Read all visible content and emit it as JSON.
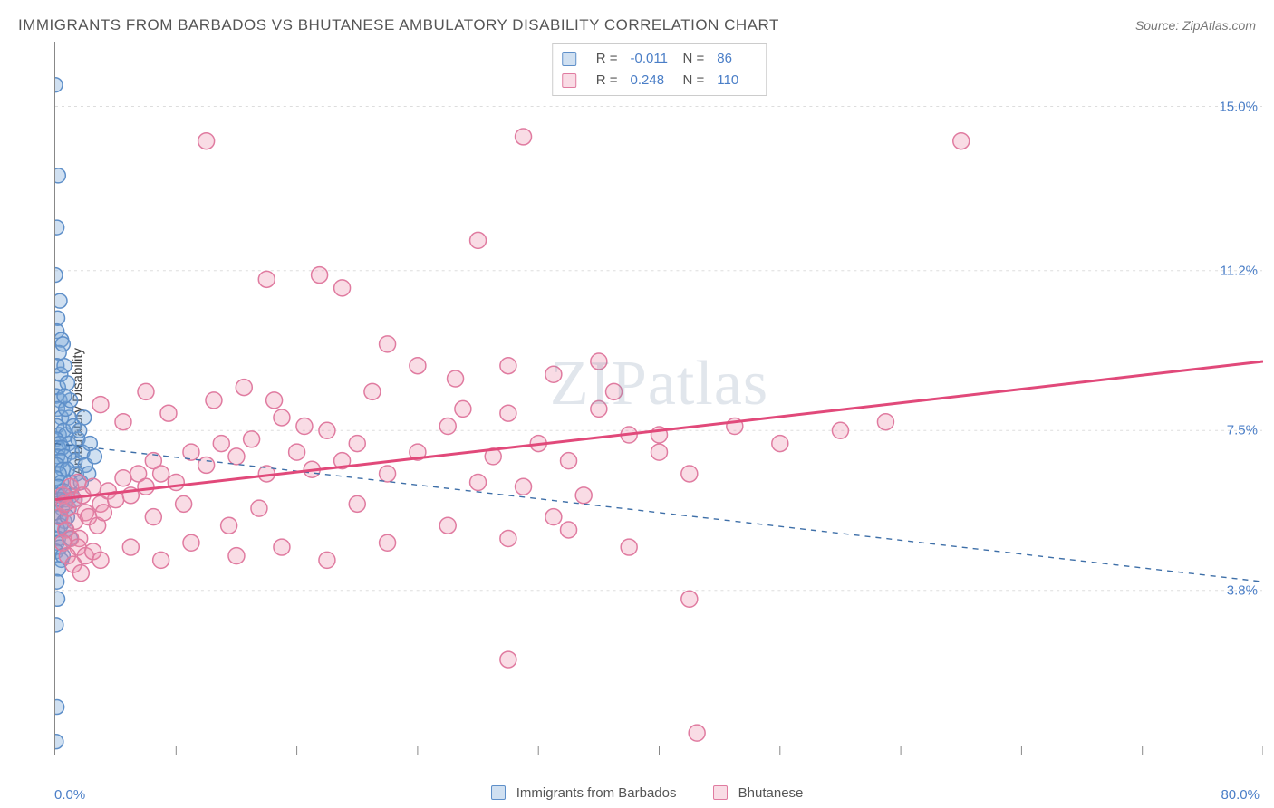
{
  "header": {
    "title": "IMMIGRANTS FROM BARBADOS VS BHUTANESE AMBULATORY DISABILITY CORRELATION CHART",
    "source_prefix": "Source: ",
    "source": "ZipAtlas.com"
  },
  "chart": {
    "type": "scatter",
    "background_color": "#ffffff",
    "grid_color": "#dddddd",
    "grid_dash": "3,4",
    "axis_color": "#888888",
    "tick_color": "#888888",
    "watermark_text": "ZIPatlas",
    "y_axis_label": "Ambulatory Disability",
    "x_axis": {
      "min_label": "0.0%",
      "max_label": "80.0%",
      "xmin": 0.0,
      "xmax": 80.0,
      "ticks_minor": [
        8,
        16,
        24,
        32,
        40,
        48,
        56,
        64,
        72,
        80
      ]
    },
    "y_axis": {
      "ymin": 0.0,
      "ymax": 16.5,
      "grid_values": [
        3.8,
        7.5,
        11.2,
        15.0
      ],
      "grid_labels": [
        "3.8%",
        "7.5%",
        "11.2%",
        "15.0%"
      ]
    },
    "label_color": "#4a7ec7",
    "legend_bottom": {
      "series1_label": "Immigrants from Barbados",
      "series2_label": "Bhutanese"
    },
    "stats_legend": {
      "r_label": "R =",
      "n_label": "N =",
      "rows": [
        {
          "r": "-0.011",
          "n": "86"
        },
        {
          "r": "0.248",
          "n": "110"
        }
      ]
    },
    "series1": {
      "name": "Immigrants from Barbados",
      "point_fill": "rgba(120,165,215,0.35)",
      "point_stroke": "#5e8fc9",
      "marker_radius": 8,
      "marker_stroke_width": 1.5,
      "trend_color": "#3e6fa8",
      "trend_width": 1.4,
      "trend_dash": "6,6",
      "trend_y_at_xmin": 7.2,
      "trend_y_at_xmax": 4.0,
      "points": [
        [
          0.0,
          15.5
        ],
        [
          0.2,
          13.4
        ],
        [
          0.1,
          12.2
        ],
        [
          0.0,
          11.1
        ],
        [
          0.3,
          10.5
        ],
        [
          0.15,
          10.1
        ],
        [
          0.1,
          9.8
        ],
        [
          0.4,
          9.6
        ],
        [
          0.25,
          9.3
        ],
        [
          0.1,
          9.0
        ],
        [
          0.35,
          8.8
        ],
        [
          0.2,
          8.5
        ],
        [
          0.05,
          8.3
        ],
        [
          0.3,
          8.2
        ],
        [
          0.15,
          8.0
        ],
        [
          0.4,
          7.8
        ],
        [
          0.1,
          7.6
        ],
        [
          0.55,
          7.5
        ],
        [
          0.25,
          7.4
        ],
        [
          0.7,
          7.4
        ],
        [
          0.05,
          7.3
        ],
        [
          0.3,
          7.2
        ],
        [
          0.9,
          7.2
        ],
        [
          0.2,
          7.1
        ],
        [
          1.1,
          7.0
        ],
        [
          0.45,
          7.1
        ],
        [
          0.15,
          6.9
        ],
        [
          0.6,
          6.9
        ],
        [
          0.35,
          6.8
        ],
        [
          1.3,
          6.8
        ],
        [
          0.1,
          6.7
        ],
        [
          0.5,
          6.6
        ],
        [
          0.8,
          6.6
        ],
        [
          0.25,
          6.5
        ],
        [
          0.05,
          6.4
        ],
        [
          0.4,
          6.3
        ],
        [
          1.0,
          6.3
        ],
        [
          0.2,
          6.2
        ],
        [
          0.55,
          6.1
        ],
        [
          0.15,
          6.0
        ],
        [
          0.3,
          5.9
        ],
        [
          0.7,
          5.9
        ],
        [
          0.1,
          5.8
        ],
        [
          0.45,
          5.7
        ],
        [
          0.05,
          5.6
        ],
        [
          0.25,
          5.5
        ],
        [
          0.6,
          5.4
        ],
        [
          0.35,
          5.3
        ],
        [
          0.15,
          5.2
        ],
        [
          0.2,
          5.0
        ],
        [
          0.1,
          4.9
        ],
        [
          0.3,
          4.8
        ],
        [
          0.05,
          4.7
        ],
        [
          0.4,
          4.5
        ],
        [
          0.2,
          4.3
        ],
        [
          0.1,
          4.0
        ],
        [
          0.15,
          3.6
        ],
        [
          0.05,
          3.0
        ],
        [
          0.1,
          1.1
        ],
        [
          0.05,
          0.3
        ],
        [
          1.5,
          7.3
        ],
        [
          1.8,
          7.0
        ],
        [
          2.0,
          6.7
        ],
        [
          2.3,
          7.2
        ],
        [
          2.6,
          6.9
        ],
        [
          0.9,
          7.8
        ],
        [
          1.2,
          7.6
        ],
        [
          0.7,
          8.0
        ],
        [
          0.8,
          8.6
        ],
        [
          0.6,
          9.0
        ],
        [
          1.0,
          8.2
        ],
        [
          0.5,
          9.5
        ],
        [
          1.4,
          6.5
        ],
        [
          1.7,
          6.3
        ],
        [
          1.1,
          6.0
        ],
        [
          0.9,
          5.7
        ],
        [
          1.3,
          5.9
        ],
        [
          0.7,
          5.2
        ],
        [
          1.6,
          7.5
        ],
        [
          1.9,
          7.8
        ],
        [
          2.2,
          6.5
        ],
        [
          0.6,
          6.0
        ],
        [
          0.8,
          5.5
        ],
        [
          1.0,
          5.0
        ],
        [
          0.5,
          4.6
        ],
        [
          0.6,
          8.3
        ]
      ]
    },
    "series2": {
      "name": "Bhutanese",
      "point_fill": "rgba(235,140,170,0.30)",
      "point_stroke": "#e07ba0",
      "marker_radius": 9,
      "marker_stroke_width": 1.5,
      "trend_color": "#e1497a",
      "trend_width": 3,
      "trend_dash": "",
      "trend_y_at_xmin": 5.9,
      "trend_y_at_xmax": 9.1,
      "points": [
        [
          0.5,
          6.0
        ],
        [
          1.0,
          6.2
        ],
        [
          0.8,
          5.7
        ],
        [
          1.2,
          5.9
        ],
        [
          1.5,
          6.3
        ],
        [
          0.3,
          5.5
        ],
        [
          0.6,
          5.8
        ],
        [
          1.8,
          6.0
        ],
        [
          2.0,
          5.6
        ],
        [
          1.3,
          5.4
        ],
        [
          0.7,
          5.2
        ],
        [
          1.6,
          5.0
        ],
        [
          2.5,
          6.2
        ],
        [
          3.0,
          5.8
        ],
        [
          3.5,
          6.1
        ],
        [
          4.0,
          5.9
        ],
        [
          2.2,
          5.5
        ],
        [
          2.8,
          5.3
        ],
        [
          3.2,
          5.6
        ],
        [
          1.0,
          5.0
        ],
        [
          1.5,
          4.8
        ],
        [
          2.0,
          4.6
        ],
        [
          2.5,
          4.7
        ],
        [
          3.0,
          4.5
        ],
        [
          0.5,
          4.9
        ],
        [
          0.8,
          4.6
        ],
        [
          1.2,
          4.4
        ],
        [
          1.7,
          4.2
        ],
        [
          4.5,
          6.4
        ],
        [
          5.0,
          6.0
        ],
        [
          5.5,
          6.5
        ],
        [
          6.0,
          6.2
        ],
        [
          6.5,
          6.8
        ],
        [
          7.0,
          6.5
        ],
        [
          8.0,
          6.3
        ],
        [
          9.0,
          7.0
        ],
        [
          10.0,
          6.7
        ],
        [
          11.0,
          7.2
        ],
        [
          12.0,
          6.9
        ],
        [
          13.0,
          7.3
        ],
        [
          14.0,
          6.5
        ],
        [
          15.0,
          7.8
        ],
        [
          16.0,
          7.0
        ],
        [
          17.0,
          6.6
        ],
        [
          18.0,
          7.5
        ],
        [
          19.0,
          6.8
        ],
        [
          20.0,
          7.2
        ],
        [
          22.0,
          6.5
        ],
        [
          24.0,
          7.0
        ],
        [
          26.0,
          7.6
        ],
        [
          28.0,
          6.3
        ],
        [
          30.0,
          7.9
        ],
        [
          32.0,
          7.2
        ],
        [
          34.0,
          6.8
        ],
        [
          36.0,
          8.0
        ],
        [
          38.0,
          7.4
        ],
        [
          40.0,
          7.0
        ],
        [
          42.0,
          6.5
        ],
        [
          45.0,
          7.6
        ],
        [
          48.0,
          7.2
        ],
        [
          52.0,
          7.5
        ],
        [
          55.0,
          7.7
        ],
        [
          10.0,
          14.2
        ],
        [
          31.0,
          14.3
        ],
        [
          60.0,
          14.2
        ],
        [
          14.0,
          11.0
        ],
        [
          17.5,
          11.1
        ],
        [
          19.0,
          10.8
        ],
        [
          28.0,
          11.9
        ],
        [
          30.0,
          9.0
        ],
        [
          6.0,
          8.4
        ],
        [
          10.5,
          8.2
        ],
        [
          22.0,
          9.5
        ],
        [
          26.5,
          8.7
        ],
        [
          33.0,
          8.8
        ],
        [
          36.0,
          9.1
        ],
        [
          37.0,
          8.4
        ],
        [
          5.0,
          4.8
        ],
        [
          7.0,
          4.5
        ],
        [
          9.0,
          4.9
        ],
        [
          12.0,
          4.6
        ],
        [
          15.0,
          4.8
        ],
        [
          18.0,
          4.5
        ],
        [
          22.0,
          4.9
        ],
        [
          26.0,
          5.3
        ],
        [
          30.0,
          5.0
        ],
        [
          34.0,
          5.2
        ],
        [
          38.0,
          4.8
        ],
        [
          14.5,
          8.2
        ],
        [
          16.5,
          7.6
        ],
        [
          21.0,
          8.4
        ],
        [
          24.0,
          9.0
        ],
        [
          27.0,
          8.0
        ],
        [
          29.0,
          6.9
        ],
        [
          31.0,
          6.2
        ],
        [
          33.0,
          5.5
        ],
        [
          35.0,
          6.0
        ],
        [
          40.0,
          7.4
        ],
        [
          42.0,
          3.6
        ],
        [
          30.0,
          2.2
        ],
        [
          42.5,
          0.5
        ],
        [
          3.0,
          8.1
        ],
        [
          4.5,
          7.7
        ],
        [
          7.5,
          7.9
        ],
        [
          12.5,
          8.5
        ],
        [
          6.5,
          5.5
        ],
        [
          8.5,
          5.8
        ],
        [
          11.5,
          5.3
        ],
        [
          13.5,
          5.7
        ],
        [
          20.0,
          5.8
        ]
      ]
    }
  }
}
